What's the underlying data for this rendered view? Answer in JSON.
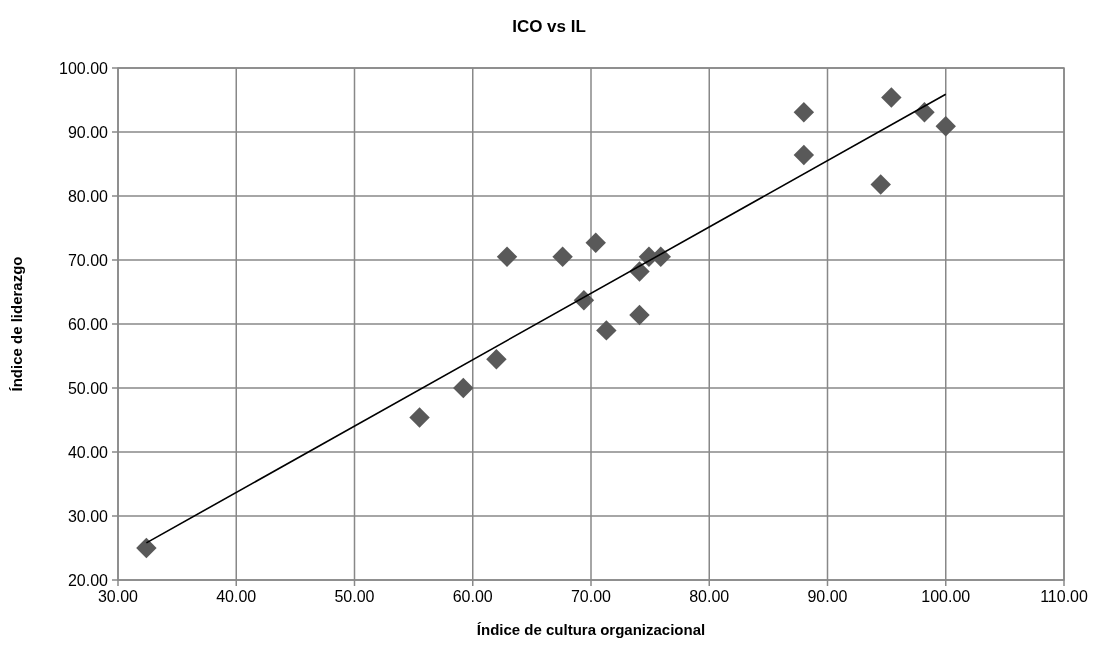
{
  "chart_data": {
    "type": "scatter",
    "title": "ICO vs IL",
    "xlabel": "Índice de cultura organizacional",
    "ylabel": "Índice de liderazgo",
    "xlim": [
      30,
      110
    ],
    "xticks": [
      {
        "value": 30,
        "label": "30.00"
      },
      {
        "value": 40,
        "label": "40.00"
      },
      {
        "value": 50,
        "label": "50.00"
      },
      {
        "value": 60,
        "label": "60.00"
      },
      {
        "value": 70,
        "label": "70.00"
      },
      {
        "value": 80,
        "label": "80.00"
      },
      {
        "value": 90,
        "label": "90.00"
      },
      {
        "value": 100,
        "label": "100.00"
      },
      {
        "value": 110,
        "label": "110.00"
      }
    ],
    "ylim": [
      20,
      100
    ],
    "yticks": [
      {
        "value": 20,
        "label": "20.00"
      },
      {
        "value": 30,
        "label": "30.00"
      },
      {
        "value": 40,
        "label": "40.00"
      },
      {
        "value": 50,
        "label": "50.00"
      },
      {
        "value": 60,
        "label": "60.00"
      },
      {
        "value": 70,
        "label": "70.00"
      },
      {
        "value": 80,
        "label": "80.00"
      },
      {
        "value": 90,
        "label": "90.00"
      },
      {
        "value": 100,
        "label": "100.00"
      }
    ],
    "grid": true,
    "series": [
      {
        "color": "#595959",
        "marker": "diamond",
        "x": [
          32.4,
          55.5,
          59.2,
          62.0,
          62.9,
          67.6,
          69.4,
          70.4,
          71.3,
          74.1,
          74.1,
          74.9,
          75.9,
          88.0,
          88.0,
          94.5,
          95.4,
          98.2,
          100.0
        ],
        "values": [
          25.0,
          45.4,
          50.0,
          54.5,
          70.5,
          70.5,
          63.7,
          72.7,
          59.0,
          68.2,
          61.4,
          70.5,
          70.5,
          93.1,
          86.4,
          81.8,
          95.4,
          93.1,
          90.9
        ]
      },
      {
        "type": "line",
        "color": "#000000",
        "marker": "none",
        "line_style": "solid",
        "x": [
          32.4,
          100.0
        ],
        "values": [
          25.8,
          95.9
        ]
      }
    ]
  }
}
